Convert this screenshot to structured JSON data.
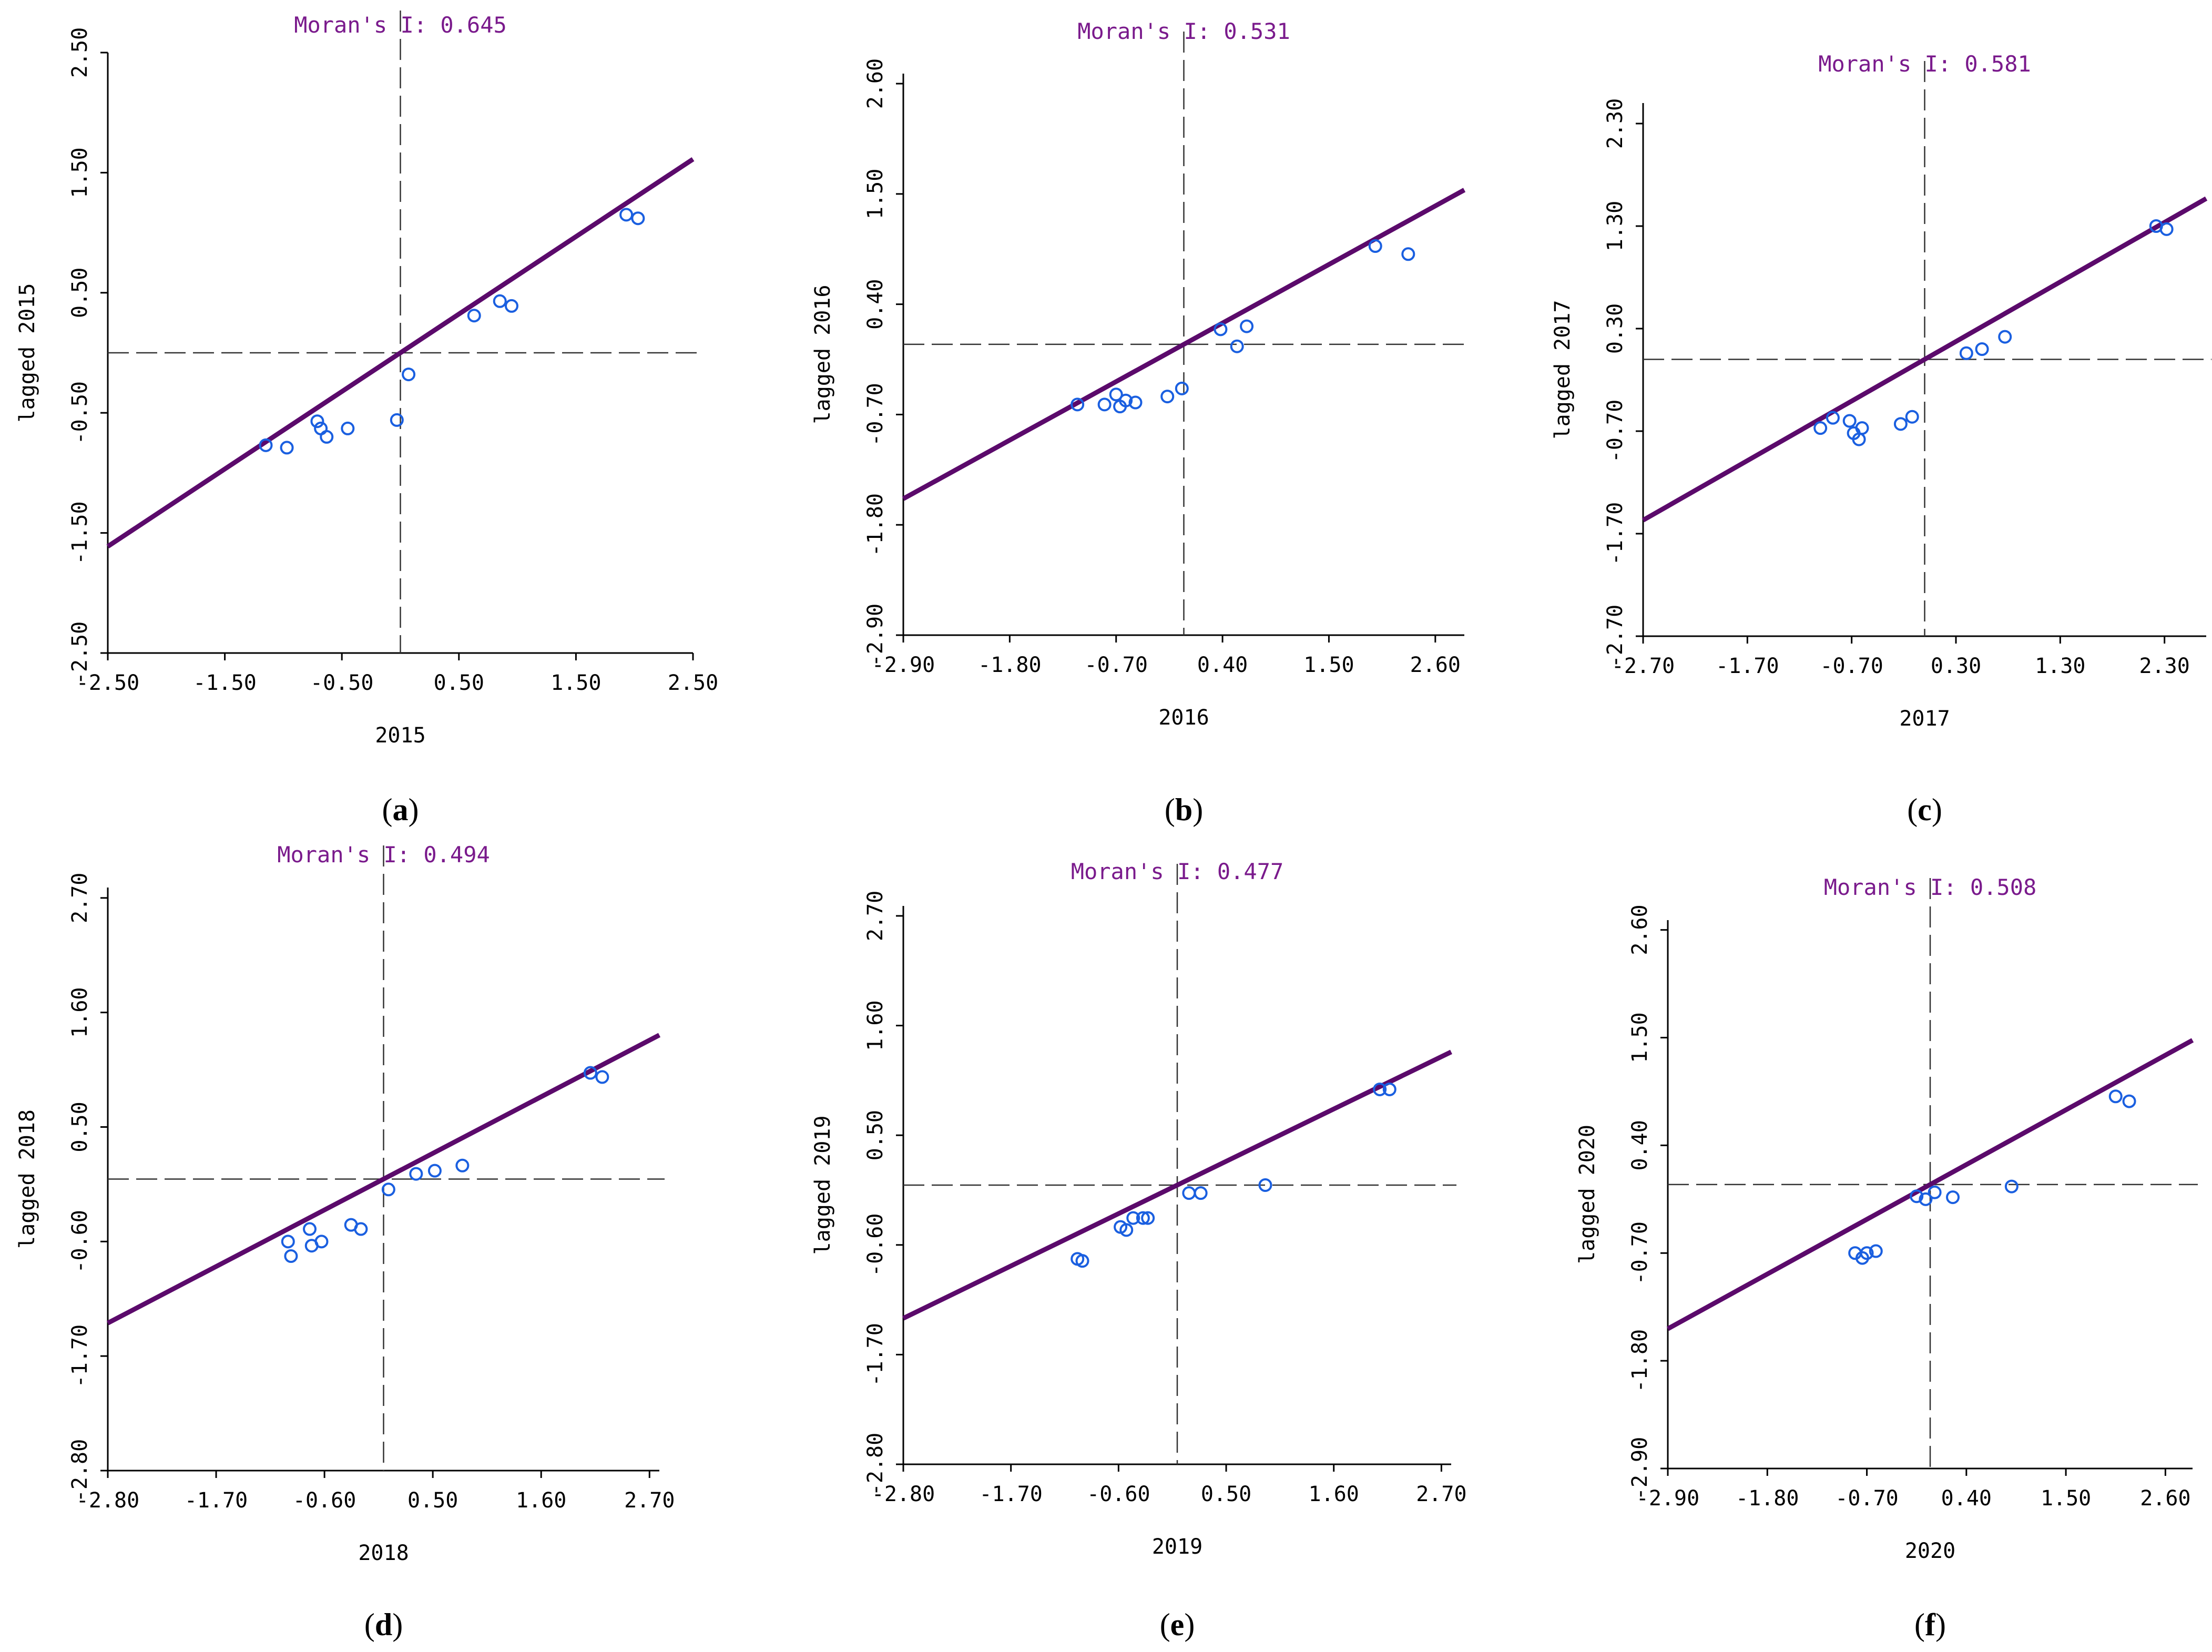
{
  "chart_data": [
    {
      "type": "scatter",
      "panel": "a",
      "title": "Moran's I: 0.645",
      "xlabel": "2015",
      "ylabel": "lagged 2015",
      "xlim": [
        -2.5,
        2.5
      ],
      "ylim": [
        -2.5,
        2.5
      ],
      "xticks": [
        "-2.50",
        "-1.50",
        "-0.50",
        "0.50",
        "1.50",
        "2.50"
      ],
      "yticks": [
        "-2.50",
        "-1.50",
        "-0.50",
        "0.50",
        "1.50",
        "2.50"
      ],
      "fit": {
        "slope": 0.645,
        "intercept": 0.0
      },
      "points": [
        [
          -1.15,
          -0.77
        ],
        [
          -0.97,
          -0.79
        ],
        [
          -0.71,
          -0.57
        ],
        [
          -0.68,
          -0.63
        ],
        [
          -0.63,
          -0.7
        ],
        [
          -0.45,
          -0.63
        ],
        [
          -0.03,
          -0.56
        ],
        [
          0.07,
          -0.18
        ],
        [
          0.63,
          0.31
        ],
        [
          0.85,
          0.43
        ],
        [
          0.95,
          0.39
        ],
        [
          1.93,
          1.15
        ],
        [
          2.03,
          1.12
        ]
      ]
    },
    {
      "type": "scatter",
      "panel": "b",
      "title": "Moran's I: 0.531",
      "xlabel": "2016",
      "ylabel": "lagged 2016",
      "xlim": [
        -2.9,
        2.9
      ],
      "ylim": [
        -2.9,
        2.7
      ],
      "xticks": [
        "-2.90",
        "-1.80",
        "-0.70",
        "0.40",
        "1.50",
        "2.60"
      ],
      "yticks": [
        "-2.90",
        "-1.80",
        "-0.70",
        "0.40",
        "1.50",
        "2.60"
      ],
      "fit": {
        "slope": 0.531,
        "intercept": 0.0
      },
      "points": [
        [
          -1.1,
          -0.6
        ],
        [
          -0.82,
          -0.6
        ],
        [
          -0.7,
          -0.5
        ],
        [
          -0.66,
          -0.62
        ],
        [
          -0.6,
          -0.56
        ],
        [
          -0.5,
          -0.58
        ],
        [
          -0.17,
          -0.52
        ],
        [
          -0.02,
          -0.44
        ],
        [
          0.38,
          0.15
        ],
        [
          0.55,
          -0.02
        ],
        [
          0.65,
          0.18
        ],
        [
          1.98,
          0.98
        ],
        [
          2.32,
          0.9
        ]
      ]
    },
    {
      "type": "scatter",
      "panel": "c",
      "title": "Moran's I: 0.581",
      "xlabel": "2017",
      "ylabel": "lagged 2017",
      "xlim": [
        -2.7,
        2.7
      ],
      "ylim": [
        -2.7,
        2.5
      ],
      "xticks": [
        "-2.70",
        "-1.70",
        "-0.70",
        "0.30",
        "1.30",
        "2.30"
      ],
      "yticks": [
        "-2.70",
        "-1.70",
        "-0.70",
        "0.30",
        "1.30",
        "2.30"
      ],
      "fit": {
        "slope": 0.581,
        "intercept": 0.0
      },
      "points": [
        [
          -1.0,
          -0.67
        ],
        [
          -0.88,
          -0.57
        ],
        [
          -0.72,
          -0.6
        ],
        [
          -0.68,
          -0.72
        ],
        [
          -0.63,
          -0.78
        ],
        [
          -0.6,
          -0.67
        ],
        [
          -0.23,
          -0.63
        ],
        [
          -0.12,
          -0.56
        ],
        [
          0.4,
          0.06
        ],
        [
          0.55,
          0.1
        ],
        [
          0.77,
          0.22
        ],
        [
          2.22,
          1.3
        ],
        [
          2.32,
          1.27
        ]
      ]
    },
    {
      "type": "scatter",
      "panel": "d",
      "title": "Moran's I: 0.494",
      "xlabel": "2018",
      "ylabel": "lagged 2018",
      "xlim": [
        -2.8,
        2.8
      ],
      "ylim": [
        -2.8,
        2.8
      ],
      "xticks": [
        "-2.80",
        "-1.70",
        "-0.60",
        "0.50",
        "1.60",
        "2.70"
      ],
      "yticks": [
        "-2.80",
        "-1.70",
        "-0.60",
        "0.50",
        "1.60",
        "2.70"
      ],
      "fit": {
        "slope": 0.494,
        "intercept": 0.0
      },
      "points": [
        [
          -0.97,
          -0.6
        ],
        [
          -0.94,
          -0.74
        ],
        [
          -0.75,
          -0.48
        ],
        [
          -0.73,
          -0.64
        ],
        [
          -0.63,
          -0.6
        ],
        [
          -0.33,
          -0.44
        ],
        [
          -0.23,
          -0.48
        ],
        [
          0.05,
          -0.1
        ],
        [
          0.33,
          0.05
        ],
        [
          0.52,
          0.08
        ],
        [
          0.8,
          0.13
        ],
        [
          2.1,
          1.02
        ],
        [
          2.22,
          0.98
        ]
      ]
    },
    {
      "type": "scatter",
      "panel": "e",
      "title": "Moran's I: 0.477",
      "xlabel": "2019",
      "ylabel": "lagged 2019",
      "xlim": [
        -2.8,
        2.8
      ],
      "ylim": [
        -2.8,
        2.8
      ],
      "xticks": [
        "-2.80",
        "-1.70",
        "-0.60",
        "0.50",
        "1.60",
        "2.70"
      ],
      "yticks": [
        "-2.80",
        "-1.70",
        "-0.60",
        "0.50",
        "1.60",
        "2.70"
      ],
      "fit": {
        "slope": 0.477,
        "intercept": 0.0
      },
      "points": [
        [
          -1.02,
          -0.74
        ],
        [
          -0.97,
          -0.76
        ],
        [
          -0.58,
          -0.42
        ],
        [
          -0.52,
          -0.45
        ],
        [
          -0.45,
          -0.33
        ],
        [
          -0.35,
          -0.33
        ],
        [
          -0.3,
          -0.33
        ],
        [
          0.12,
          -0.08
        ],
        [
          0.24,
          -0.08
        ],
        [
          0.9,
          0.0
        ],
        [
          2.07,
          0.96
        ],
        [
          2.17,
          0.96
        ]
      ]
    },
    {
      "type": "scatter",
      "panel": "f",
      "title": "Moran's I: 0.508",
      "xlabel": "2020",
      "ylabel": "lagged 2020",
      "xlim": [
        -2.9,
        2.9
      ],
      "ylim": [
        -2.9,
        2.7
      ],
      "xticks": [
        "-2.90",
        "-1.80",
        "-0.70",
        "0.40",
        "1.50",
        "2.60"
      ],
      "yticks": [
        "-2.90",
        "-1.80",
        "-0.70",
        "0.40",
        "1.50",
        "2.60"
      ],
      "fit": {
        "slope": 0.508,
        "intercept": 0.0
      },
      "points": [
        [
          -0.83,
          -0.7
        ],
        [
          -0.75,
          -0.75
        ],
        [
          -0.7,
          -0.7
        ],
        [
          -0.6,
          -0.68
        ],
        [
          -0.15,
          -0.12
        ],
        [
          -0.05,
          -0.15
        ],
        [
          0.05,
          -0.08
        ],
        [
          0.25,
          -0.13
        ],
        [
          0.9,
          -0.02
        ],
        [
          2.05,
          0.9
        ],
        [
          2.2,
          0.85
        ]
      ]
    }
  ]
}
